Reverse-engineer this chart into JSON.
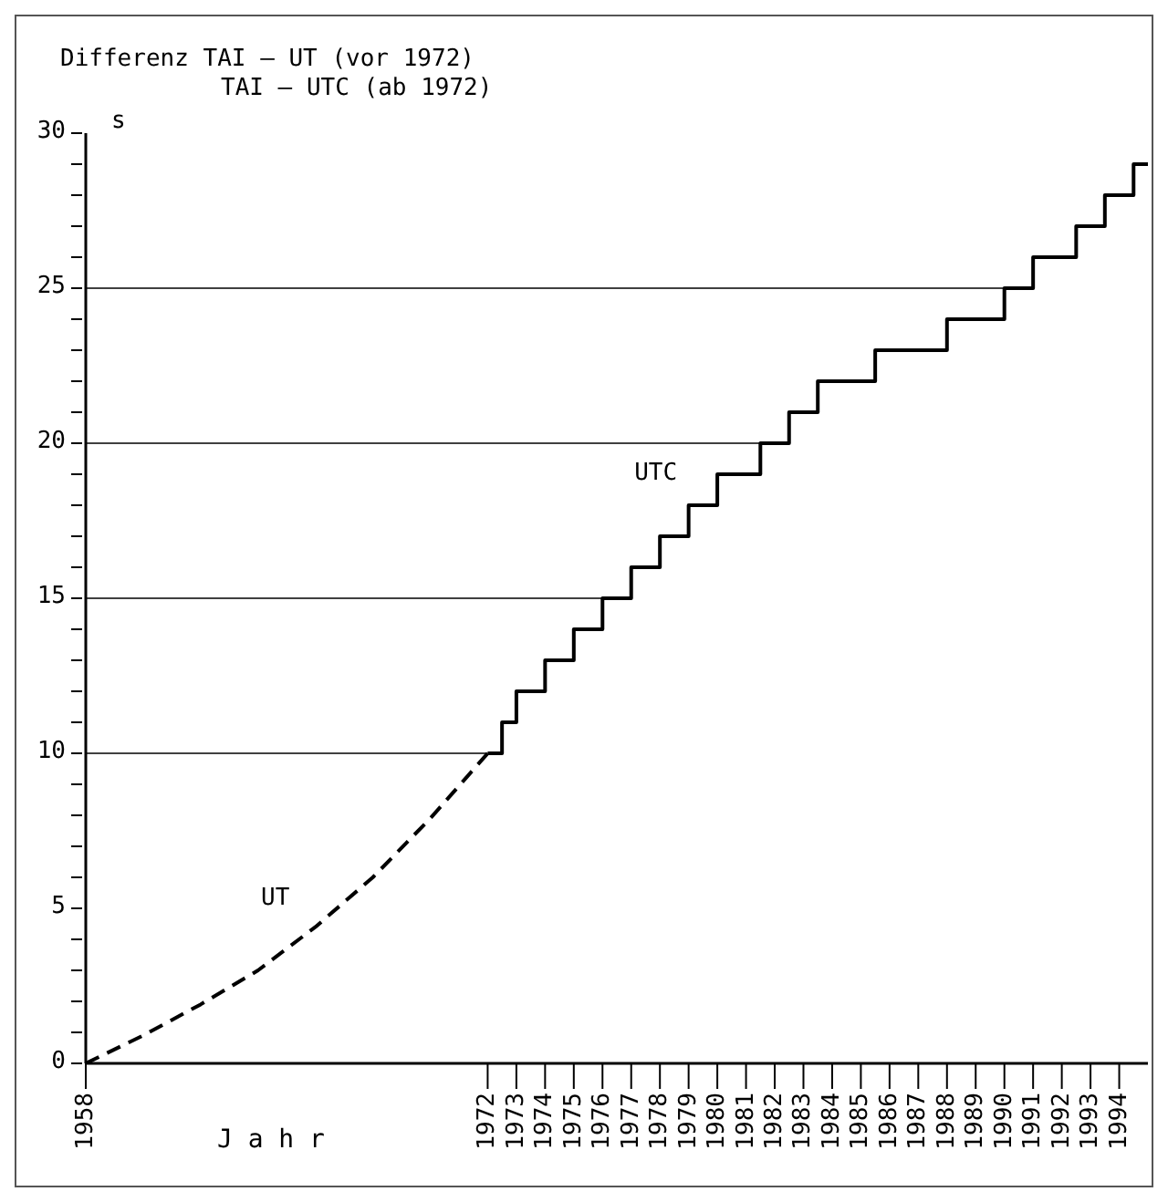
{
  "chart_data": {
    "type": "line",
    "title": "Differenz TAI – UT (vor 1972)",
    "subtitle": "TAI – UTC (ab 1972)",
    "xlabel": "Jahr",
    "ylabel": "s",
    "xlim": [
      1958,
      1995
    ],
    "xticks": [
      1958,
      1972,
      1973,
      1974,
      1975,
      1976,
      1977,
      1978,
      1979,
      1980,
      1981,
      1982,
      1983,
      1984,
      1985,
      1986,
      1987,
      1988,
      1989,
      1990,
      1991,
      1992,
      1993,
      1994
    ],
    "ylim": [
      0,
      30
    ],
    "yticks": [
      0,
      {
        "value": 1,
        "label": null
      },
      {
        "value": 2,
        "label": null
      },
      {
        "value": 3,
        "label": null
      },
      {
        "value": 4,
        "label": null
      },
      5,
      {
        "value": 6,
        "label": null
      },
      {
        "value": 7,
        "label": null
      },
      {
        "value": 8,
        "label": null
      },
      {
        "value": 9,
        "label": null
      },
      10,
      {
        "value": 11,
        "label": null
      },
      {
        "value": 12,
        "label": null
      },
      {
        "value": 13,
        "label": null
      },
      {
        "value": 14,
        "label": null
      },
      15,
      {
        "value": 16,
        "label": null
      },
      {
        "value": 17,
        "label": null
      },
      {
        "value": 18,
        "label": null
      },
      {
        "value": 19,
        "label": null
      },
      20,
      {
        "value": 21,
        "label": null
      },
      {
        "value": 22,
        "label": null
      },
      {
        "value": 23,
        "label": null
      },
      {
        "value": 24,
        "label": null
      },
      25,
      {
        "value": 26,
        "label": null
      },
      {
        "value": 27,
        "label": null
      },
      {
        "value": 28,
        "label": null
      },
      {
        "value": 29,
        "label": null
      },
      30
    ],
    "ref_lines": [
      {
        "axis": "y",
        "value": 10,
        "color": "#000000"
      },
      {
        "axis": "y",
        "value": 15,
        "color": "#000000"
      },
      {
        "axis": "y",
        "value": 20,
        "color": "#000000"
      },
      {
        "axis": "y",
        "value": 25,
        "color": "#000000"
      }
    ],
    "series": [
      {
        "name": "UT",
        "line_style": "dashed",
        "color": "#000000",
        "x": [
          1958,
          1960,
          1962,
          1964,
          1966,
          1968,
          1970,
          1972
        ],
        "values": [
          0,
          0.9,
          1.9,
          3,
          4.4,
          6,
          7.9,
          10
        ]
      },
      {
        "name": "UTC",
        "type": "step",
        "color": "#000000",
        "x": [
          1972,
          1972.5,
          1973,
          1974,
          1975,
          1976,
          1977,
          1978,
          1979,
          1980,
          1981.5,
          1982.5,
          1983.5,
          1985.5,
          1988,
          1990,
          1991,
          1992.5,
          1993.5,
          1994.5,
          1995
        ],
        "values": [
          10,
          11,
          12,
          13,
          14,
          15,
          16,
          17,
          18,
          19,
          20,
          21,
          22,
          23,
          24,
          25,
          26,
          27,
          28,
          29,
          29
        ]
      }
    ]
  }
}
